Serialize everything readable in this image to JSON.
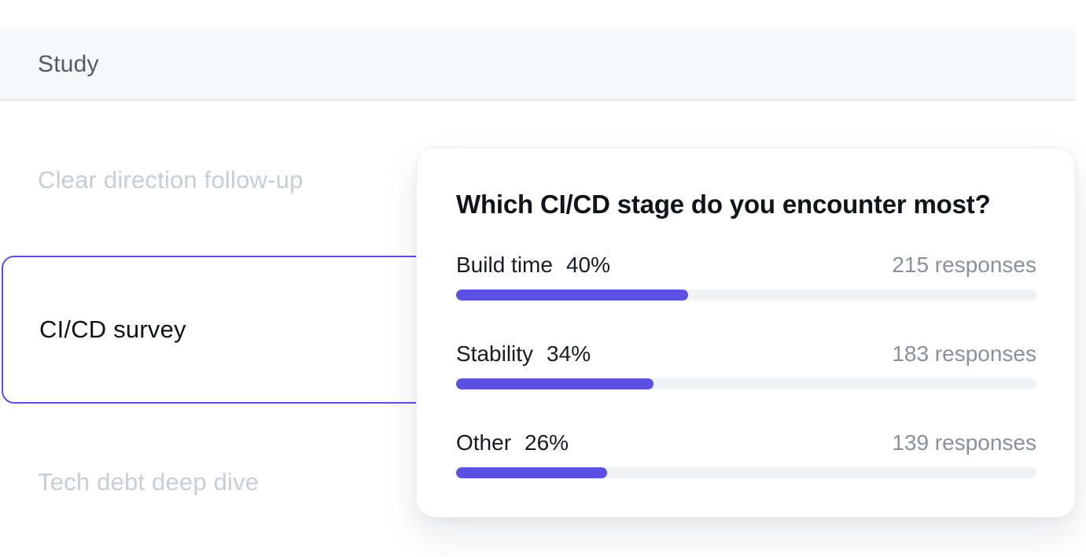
{
  "header": {
    "title": "Study"
  },
  "sidebar": {
    "items": [
      {
        "label": "Clear direction follow-up",
        "state": "muted"
      },
      {
        "label": "CI/CD survey",
        "state": "selected"
      },
      {
        "label": "Tech debt deep dive",
        "state": "muted"
      }
    ]
  },
  "card": {
    "title": "Which CI/CD stage do you encounter most?",
    "rows": [
      {
        "label": "Build time",
        "percent": "40%",
        "value": 40,
        "responses": "215 responses"
      },
      {
        "label": "Stability",
        "percent": "34%",
        "value": 34,
        "responses": "183 responses"
      },
      {
        "label": "Other",
        "percent": "26%",
        "value": 26,
        "responses": "139 responses"
      }
    ]
  },
  "colors": {
    "accent": "#5b50e1",
    "track": "#f1f2f4",
    "header_bg": "#f7f8f9",
    "header_border": "#e7e9ec",
    "muted_text": "#c9cdd4",
    "responses_text": "#8a909c",
    "title_text": "#101318"
  },
  "chart_data": {
    "type": "bar",
    "title": "Which CI/CD stage do you encounter most?",
    "categories": [
      "Build time",
      "Stability",
      "Other"
    ],
    "series": [
      {
        "name": "percent_of_responses",
        "values": [
          40,
          34,
          26
        ]
      },
      {
        "name": "response_counts",
        "values": [
          215,
          183,
          139
        ]
      }
    ],
    "xlabel": "",
    "ylabel": "",
    "xlim": [
      0,
      100
    ],
    "legend": false,
    "orientation": "horizontal"
  }
}
